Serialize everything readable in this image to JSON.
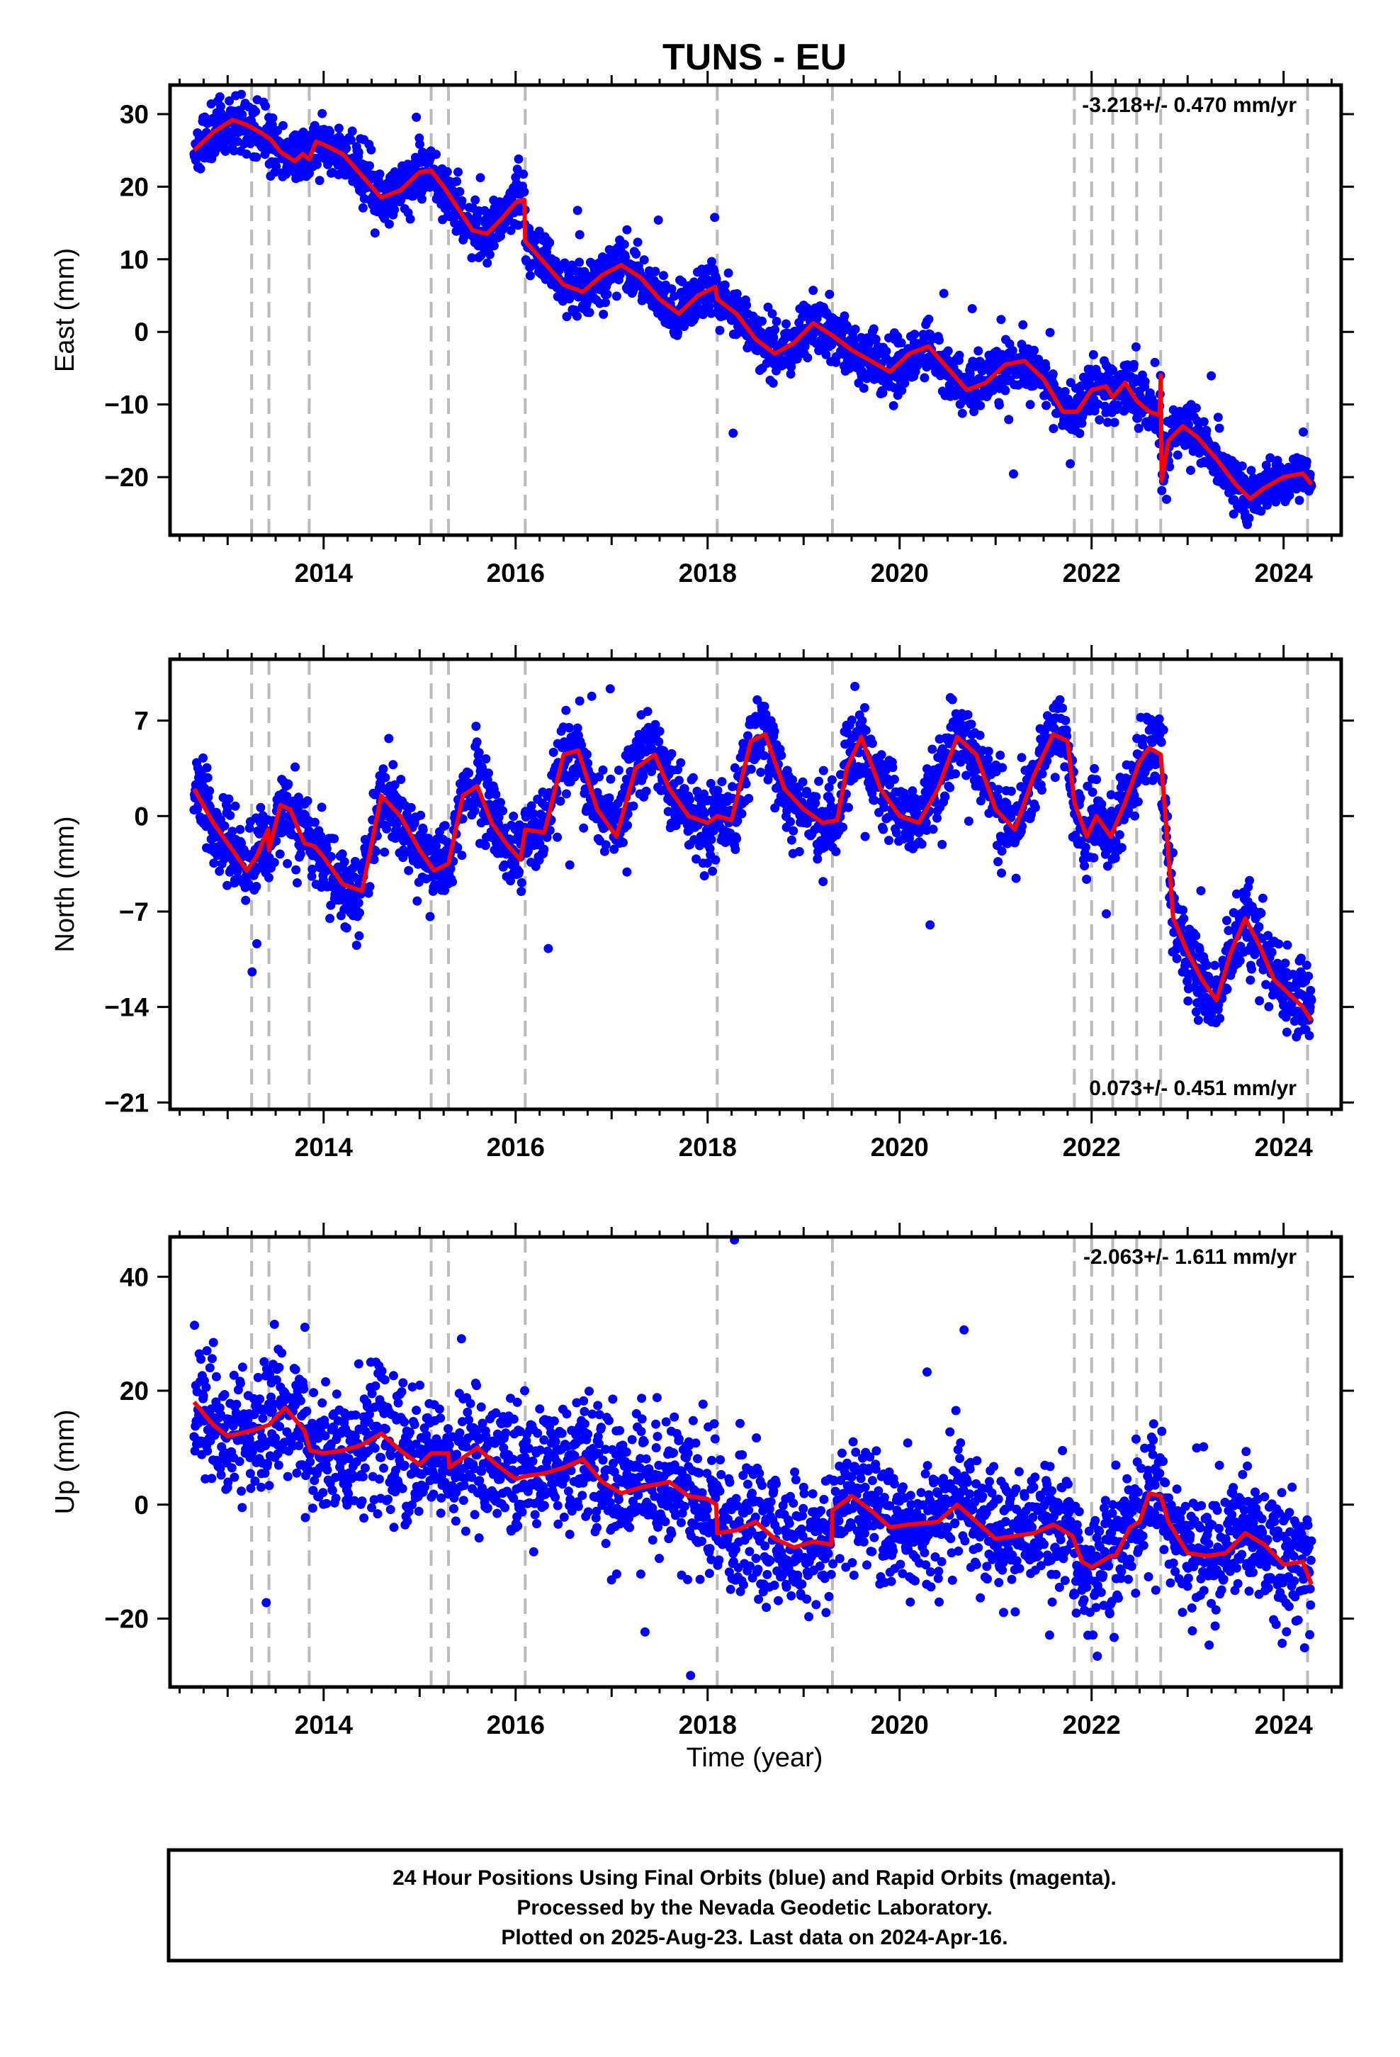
{
  "title": "TUNS - EU",
  "xlabel": "Time (year)",
  "footer": {
    "line1": "24 Hour Positions Using Final Orbits (blue) and Rapid Orbits (magenta).",
    "line2": "Processed by the Nevada Geodetic Laboratory.",
    "line3": "Plotted on 2025-Aug-23. Last data on 2024-Apr-16."
  },
  "colors": {
    "points": "#0000ff",
    "model": "#ff0000",
    "events": "#bbbbbb",
    "frame": "#000000"
  },
  "chart_data": [
    {
      "type": "scatter",
      "title": "TUNS - EU",
      "xlabel": "",
      "ylabel": "East (mm)",
      "rate_label": "-3.218+/- 0.470 mm/yr",
      "rate_position": "top-right",
      "xlim": [
        2012.4,
        2024.6
      ],
      "ylim": [
        -28,
        34
      ],
      "yticks": [
        30,
        20,
        10,
        0,
        -10,
        -20
      ],
      "yticklabels": [
        "30",
        "20",
        "10",
        "0",
        "−10",
        "−20"
      ],
      "xticks": [
        2014,
        2016,
        2018,
        2020,
        2022,
        2024
      ],
      "xticklabels": [
        "2014",
        "2016",
        "2018",
        "2020",
        "2022",
        "2024"
      ],
      "event_lines": [
        2013.25,
        2013.43,
        2013.85,
        2015.12,
        2015.3,
        2016.1,
        2018.1,
        2019.3,
        2021.82,
        2022.0,
        2022.22,
        2022.47,
        2022.72,
        2024.25
      ],
      "trend": {
        "start_year": 2012.65,
        "end_year": 2024.29,
        "slope_mm_per_yr": -3.218,
        "seasonal_amplitude": 3.2
      },
      "noise_sd": 1.8,
      "model_series": {
        "name": "model",
        "x": [
          2012.65,
          2012.85,
          2013.05,
          2013.2,
          2013.35,
          2013.45,
          2013.55,
          2013.7,
          2013.78,
          2013.85,
          2013.92,
          2014.0,
          2014.2,
          2014.4,
          2014.6,
          2014.8,
          2015.0,
          2015.12,
          2015.25,
          2015.4,
          2015.55,
          2015.7,
          2015.85,
          2016.0,
          2016.09,
          2016.1,
          2016.3,
          2016.5,
          2016.7,
          2016.9,
          2017.1,
          2017.3,
          2017.5,
          2017.7,
          2017.9,
          2018.08,
          2018.1,
          2018.3,
          2018.5,
          2018.7,
          2018.9,
          2019.1,
          2019.3,
          2019.5,
          2019.7,
          2019.9,
          2020.1,
          2020.3,
          2020.5,
          2020.7,
          2020.9,
          2021.1,
          2021.3,
          2021.5,
          2021.7,
          2021.85,
          2022.0,
          2022.15,
          2022.22,
          2022.35,
          2022.47,
          2022.6,
          2022.71,
          2022.72,
          2022.73,
          2022.8,
          2022.95,
          2023.1,
          2023.3,
          2023.5,
          2023.65,
          2023.8,
          2024.0,
          2024.2,
          2024.29
        ],
        "y": [
          25,
          27.5,
          29.2,
          28.5,
          27.4,
          26.5,
          24.8,
          23.5,
          24.5,
          23.8,
          26.2,
          25.8,
          24.5,
          21.5,
          18.5,
          19.5,
          22,
          22.2,
          20,
          17,
          14,
          13.5,
          15.5,
          17.8,
          18.2,
          12.5,
          9.5,
          6.5,
          5.5,
          7.8,
          9.2,
          7.5,
          4.5,
          2.5,
          5,
          6.2,
          4.5,
          2.5,
          -1,
          -3,
          -1.5,
          1.2,
          -0.5,
          -2.5,
          -4,
          -5.5,
          -3,
          -2,
          -5,
          -8,
          -7,
          -4.5,
          -4,
          -6.5,
          -11,
          -11,
          -8,
          -7.5,
          -9,
          -7,
          -9.5,
          -11,
          -11.5,
          -6,
          -20.5,
          -15,
          -13,
          -14.5,
          -17.5,
          -21,
          -23,
          -21.5,
          -20,
          -19.5,
          -21
        ]
      }
    },
    {
      "type": "scatter",
      "title": "",
      "xlabel": "",
      "ylabel": "North (mm)",
      "rate_label": "0.073+/- 0.451 mm/yr",
      "rate_position": "bottom-right",
      "xlim": [
        2012.4,
        2024.6
      ],
      "ylim": [
        -21.5,
        11.5
      ],
      "yticks": [
        7,
        0,
        -7,
        -14,
        -21
      ],
      "yticklabels": [
        "7",
        "0",
        "−7",
        "−14",
        "−21"
      ],
      "xticks": [
        2014,
        2016,
        2018,
        2020,
        2022,
        2024
      ],
      "xticklabels": [
        "2014",
        "2016",
        "2018",
        "2020",
        "2022",
        "2024"
      ],
      "event_lines": [
        2013.25,
        2013.43,
        2013.85,
        2015.12,
        2015.3,
        2016.1,
        2018.1,
        2019.3,
        2021.82,
        2022.0,
        2022.22,
        2022.47,
        2022.72,
        2024.25
      ],
      "trend": {
        "start_year": 2012.65,
        "end_year": 2024.29,
        "slope_mm_per_yr": 0.073,
        "seasonal_amplitude": 3.0
      },
      "noise_sd": 1.4,
      "model_series": {
        "name": "model",
        "x": [
          2012.65,
          2012.85,
          2013.05,
          2013.2,
          2013.3,
          2013.42,
          2013.43,
          2013.55,
          2013.65,
          2013.8,
          2013.9,
          2014.0,
          2014.2,
          2014.4,
          2014.6,
          2014.8,
          2015.0,
          2015.15,
          2015.3,
          2015.45,
          2015.6,
          2015.75,
          2015.9,
          2016.05,
          2016.1,
          2016.3,
          2016.5,
          2016.65,
          2016.85,
          2017.05,
          2017.25,
          2017.45,
          2017.6,
          2017.8,
          2018.0,
          2018.1,
          2018.25,
          2018.45,
          2018.6,
          2018.8,
          2019.0,
          2019.2,
          2019.35,
          2019.45,
          2019.6,
          2019.8,
          2020.0,
          2020.2,
          2020.4,
          2020.6,
          2020.8,
          2021.0,
          2021.2,
          2021.4,
          2021.6,
          2021.75,
          2021.82,
          2021.95,
          2022.05,
          2022.2,
          2022.35,
          2022.5,
          2022.6,
          2022.72,
          2022.85,
          2023.0,
          2023.15,
          2023.3,
          2023.45,
          2023.6,
          2023.75,
          2023.9,
          2024.05,
          2024.2,
          2024.29
        ],
        "y": [
          2,
          -0.5,
          -2.5,
          -4,
          -3,
          -1,
          -2.5,
          0.8,
          0.5,
          -2,
          -2.2,
          -3,
          -5,
          -5.5,
          1.5,
          0,
          -2.5,
          -4,
          -3.5,
          1.5,
          2.2,
          -0.5,
          -2,
          -3.2,
          -1,
          -1.2,
          4.5,
          4.8,
          0.5,
          -1.5,
          3.5,
          4.5,
          2,
          0,
          -0.5,
          0,
          -0.3,
          5.5,
          6,
          2,
          0.5,
          -0.5,
          -0.3,
          3.5,
          5.8,
          2,
          0,
          -0.5,
          2,
          5.8,
          4.5,
          0.5,
          -1,
          3,
          6,
          5.5,
          1,
          -1.5,
          0,
          -1.5,
          1,
          4,
          5,
          4.5,
          -7.5,
          -10,
          -12,
          -13.5,
          -10,
          -7.5,
          -9.5,
          -12,
          -13,
          -14,
          -15
        ]
      }
    },
    {
      "type": "scatter",
      "title": "",
      "xlabel": "Time (year)",
      "ylabel": "Up (mm)",
      "rate_label": "-2.063+/- 1.611 mm/yr",
      "rate_position": "top-right",
      "xlim": [
        2012.4,
        2024.6
      ],
      "ylim": [
        -32,
        47
      ],
      "yticks": [
        40,
        20,
        0,
        -20
      ],
      "yticklabels": [
        "40",
        "20",
        "0",
        "−20"
      ],
      "xticks": [
        2014,
        2016,
        2018,
        2020,
        2022,
        2024
      ],
      "xticklabels": [
        "2014",
        "2016",
        "2018",
        "2020",
        "2022",
        "2024"
      ],
      "event_lines": [
        2013.25,
        2013.43,
        2013.85,
        2015.12,
        2015.3,
        2016.1,
        2018.1,
        2019.3,
        2021.82,
        2022.0,
        2022.22,
        2022.47,
        2022.72,
        2024.25
      ],
      "trend": {
        "start_year": 2012.65,
        "end_year": 2024.29,
        "slope_mm_per_yr": -2.063,
        "seasonal_amplitude": 3.0
      },
      "noise_sd": 5.5,
      "model_series": {
        "name": "model",
        "x": [
          2012.65,
          2012.85,
          2013.0,
          2013.25,
          2013.43,
          2013.6,
          2013.8,
          2013.86,
          2014.0,
          2014.2,
          2014.4,
          2014.6,
          2014.8,
          2015.0,
          2015.12,
          2015.3,
          2015.31,
          2015.6,
          2015.8,
          2016.0,
          2016.1,
          2016.3,
          2016.5,
          2016.7,
          2016.9,
          2017.1,
          2017.3,
          2017.6,
          2017.8,
          2018.0,
          2018.09,
          2018.1,
          2018.3,
          2018.5,
          2018.7,
          2018.9,
          2019.1,
          2019.29,
          2019.3,
          2019.5,
          2019.7,
          2019.9,
          2020.1,
          2020.4,
          2020.6,
          2020.8,
          2021.0,
          2021.2,
          2021.4,
          2021.6,
          2021.8,
          2021.9,
          2022.0,
          2022.2,
          2022.25,
          2022.4,
          2022.5,
          2022.6,
          2022.72,
          2022.8,
          2023.0,
          2023.2,
          2023.4,
          2023.6,
          2023.8,
          2024.0,
          2024.2,
          2024.29
        ],
        "y": [
          18,
          14,
          12,
          13,
          14,
          17,
          13,
          9.5,
          9,
          9.5,
          10.5,
          12.5,
          9.5,
          7,
          9,
          9,
          6.5,
          10,
          7,
          4.5,
          5,
          5.5,
          6.5,
          8,
          4,
          2,
          3,
          4,
          1.5,
          1,
          0,
          -5,
          -4.5,
          -3,
          -6,
          -7.5,
          -6.5,
          -7,
          -1,
          1.5,
          -1,
          -4,
          -3.5,
          -3,
          0,
          -3,
          -6,
          -5.5,
          -5,
          -3.5,
          -5.5,
          -10,
          -11,
          -9,
          -9,
          -4,
          -3,
          2,
          1.5,
          -3,
          -8.5,
          -9,
          -8.5,
          -5,
          -7,
          -10.5,
          -10,
          -14
        ]
      }
    }
  ]
}
